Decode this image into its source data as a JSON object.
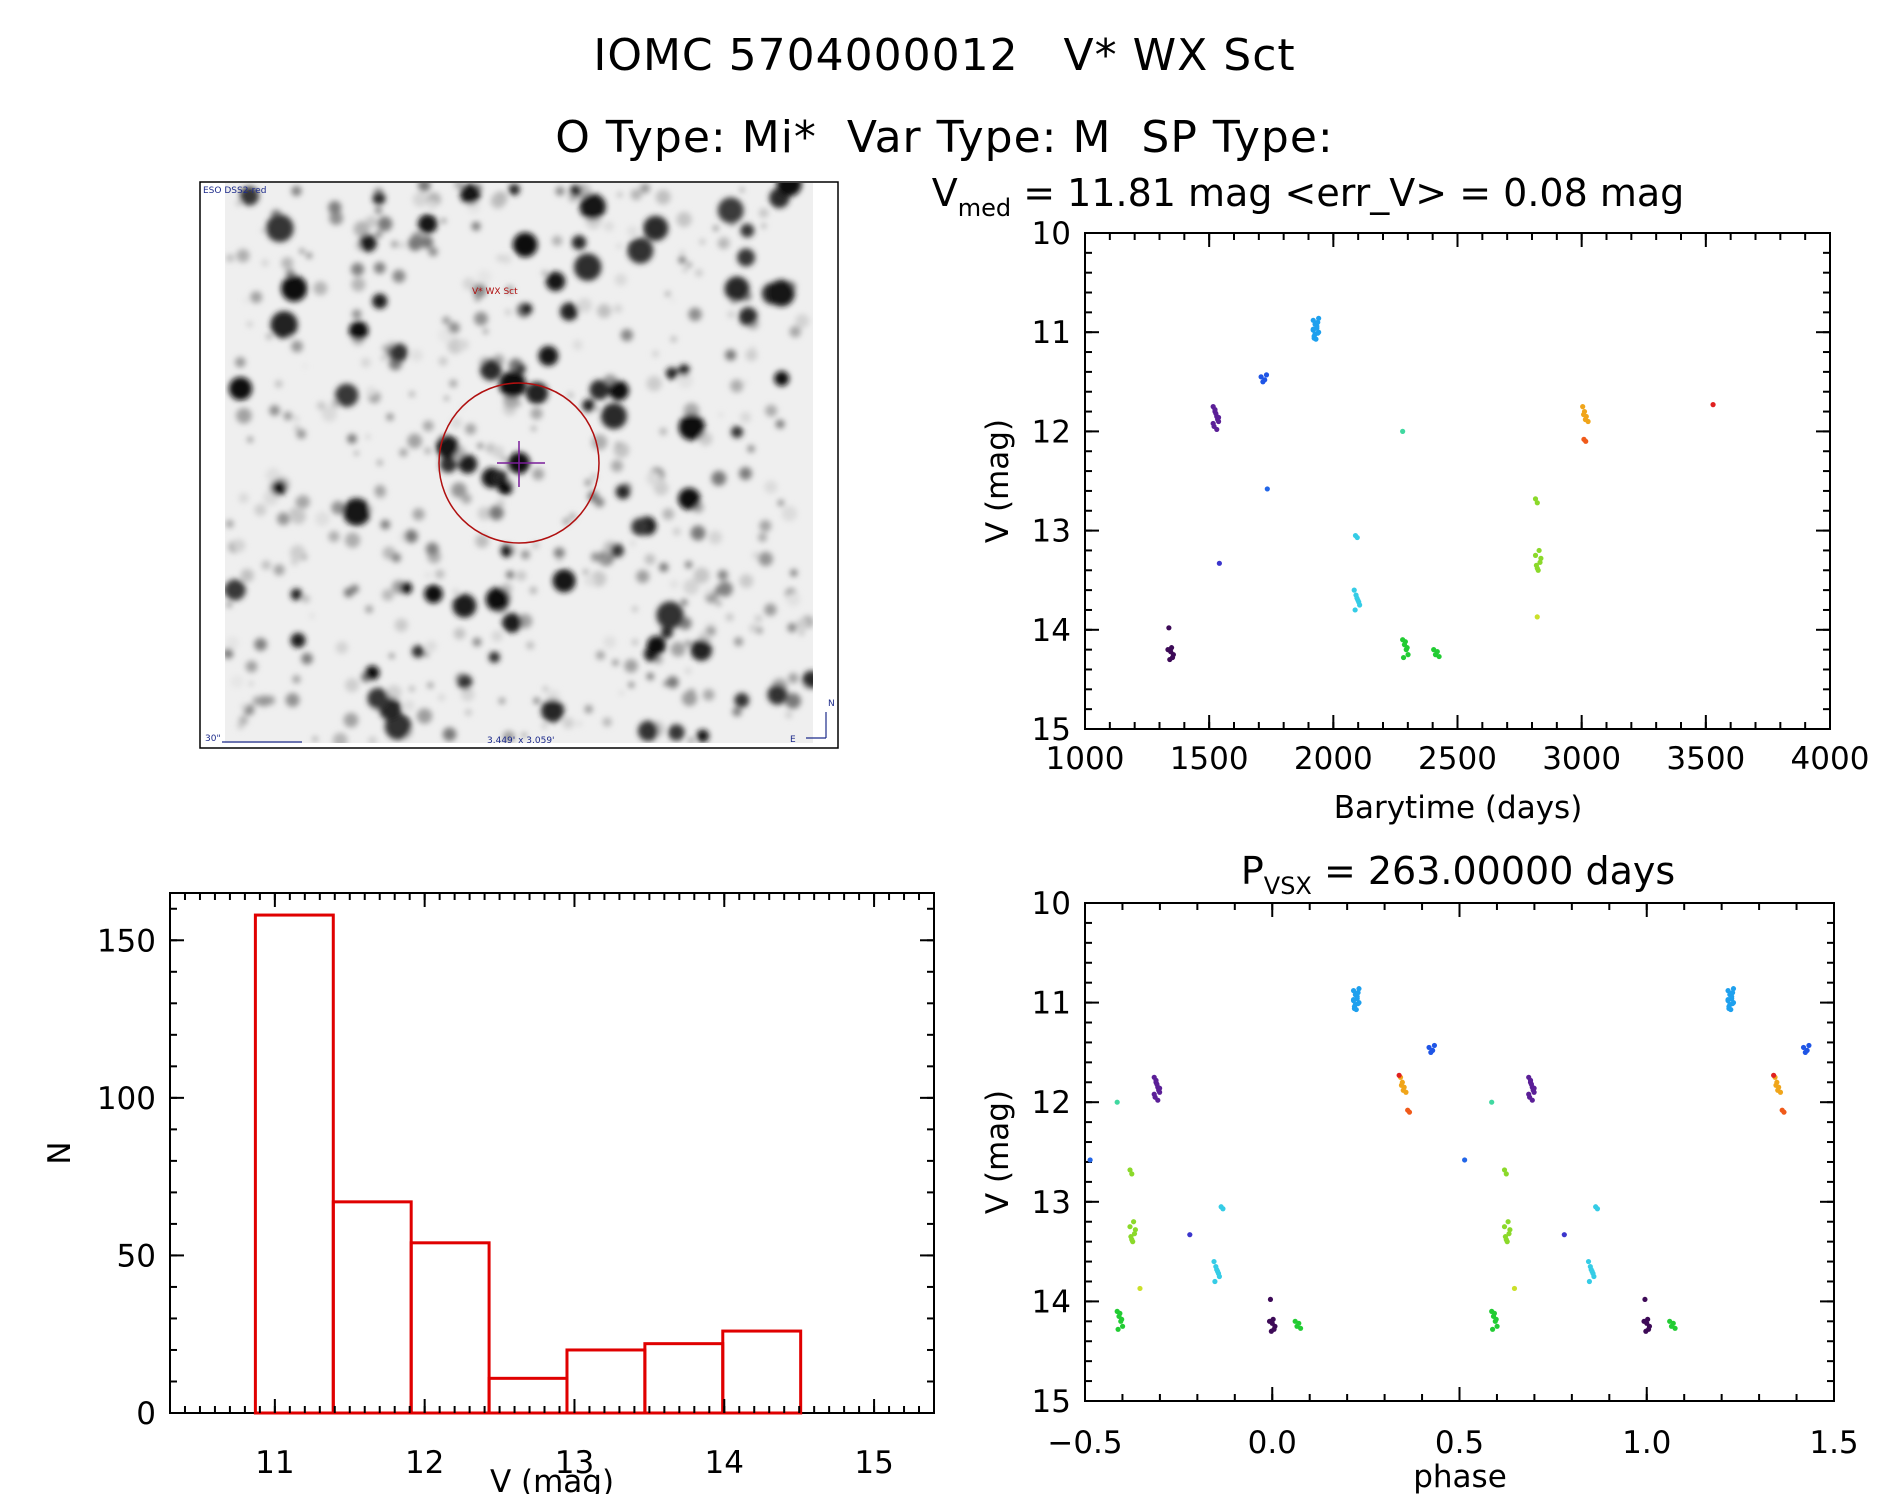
{
  "header": {
    "line1": "IOMC 5704000012   V* WX Sct",
    "line2": "O Type: Mi*  Var Type: M  SP Type:"
  },
  "finder": {
    "survey_label": "ESO DSS2-red",
    "target_label": "V* WX Sct",
    "scale_label": "30\"",
    "fov_label": "3.449' x 3.059'",
    "north_label": "N",
    "east_label": "E"
  },
  "chart_data": [
    {
      "type": "scatter",
      "name": "light-curve",
      "title_main": "V",
      "title_sub": "med",
      "title_rest": " = 11.81 mag <err_V> = 0.08 mag",
      "xlabel": "Barytime (days)",
      "ylabel": "V (mag)",
      "xlim": [
        1000,
        4000
      ],
      "ylim": [
        15,
        10
      ],
      "x_ticks": [
        1000,
        1500,
        2000,
        2500,
        3000,
        3500,
        4000
      ],
      "y_ticks": [
        10,
        11,
        12,
        13,
        14,
        15
      ],
      "groups": [
        {
          "x": 1345,
          "color": "#3d0a57",
          "points": [
            14.2,
            14.3,
            14.18,
            14.25,
            13.98,
            14.22,
            14.28
          ]
        },
        {
          "x": 1527,
          "color": "#5b1f97",
          "points": [
            11.75,
            11.8,
            11.85,
            11.9,
            11.95,
            11.82,
            11.88,
            11.92,
            11.78,
            11.98,
            11.86
          ]
        },
        {
          "x": 1552,
          "color": "#3b35cc",
          "points": [
            13.33
          ]
        },
        {
          "x": 1720,
          "color": "#1f55e6",
          "points": [
            11.45,
            11.5,
            11.48,
            11.43
          ]
        },
        {
          "x": 1745,
          "color": "#2266e8",
          "points": [
            12.58
          ]
        },
        {
          "x": 1930,
          "color": "#1ea0ee",
          "points": [
            10.88,
            10.92,
            10.96,
            11.0,
            11.04,
            11.07,
            10.9,
            10.98,
            11.02,
            10.94,
            10.86,
            11.06,
            10.91,
            11.01,
            10.97
          ]
        },
        {
          "x": 2100,
          "color": "#35cce6",
          "points": [
            13.05,
            13.07
          ]
        },
        {
          "x": 2095,
          "color": "#35cce6",
          "points": [
            13.6,
            13.65,
            13.7,
            13.75,
            13.8,
            13.68,
            13.72
          ]
        },
        {
          "x": 2290,
          "color": "#40d8a0",
          "points": [
            12.0
          ]
        },
        {
          "x": 2290,
          "color": "#22cc33",
          "points": [
            14.1,
            14.15,
            14.2,
            14.25,
            14.28,
            14.12,
            14.18
          ]
        },
        {
          "x": 2415,
          "color": "#22cc33",
          "points": [
            14.2,
            14.25,
            14.22,
            14.27
          ]
        },
        {
          "x": 2825,
          "color": "#8bd92a",
          "points": [
            12.68,
            12.72,
            13.2,
            13.28,
            13.35,
            13.4,
            13.32,
            13.25,
            13.38
          ]
        },
        {
          "x": 2832,
          "color": "#cbe02a",
          "points": [
            13.87
          ]
        },
        {
          "x": 3015,
          "color": "#f0a51a",
          "points": [
            11.75,
            11.8,
            11.85,
            11.9,
            11.83,
            11.88
          ]
        },
        {
          "x": 3020,
          "color": "#f05a1a",
          "points": [
            12.08,
            12.1
          ]
        },
        {
          "x": 3540,
          "color": "#e02020",
          "points": [
            11.73
          ]
        }
      ]
    },
    {
      "type": "bar",
      "name": "histogram",
      "xlabel": "V (mag)",
      "ylabel": "N",
      "xlim": [
        10.3,
        15.4
      ],
      "ylim": [
        0,
        165
      ],
      "x_ticks": [
        11,
        12,
        13,
        14,
        15
      ],
      "y_ticks": [
        0,
        50,
        100,
        150
      ],
      "bins": [
        {
          "x0": 10.87,
          "x1": 11.39,
          "count": 158
        },
        {
          "x0": 11.39,
          "x1": 11.91,
          "count": 67
        },
        {
          "x0": 11.91,
          "x1": 12.43,
          "count": 54
        },
        {
          "x0": 12.43,
          "x1": 12.95,
          "count": 11
        },
        {
          "x0": 12.95,
          "x1": 13.47,
          "count": 20
        },
        {
          "x0": 13.47,
          "x1": 13.99,
          "count": 22
        },
        {
          "x0": 13.99,
          "x1": 14.51,
          "count": 26
        }
      ],
      "color": "#e00000"
    },
    {
      "type": "scatter",
      "name": "phased-curve",
      "title_main": "P",
      "title_sub": "VSX",
      "title_rest": " = 263.00000 days",
      "xlabel": "phase",
      "ylabel": "V (mag)",
      "xlim": [
        -0.5,
        1.5
      ],
      "ylim": [
        15,
        10
      ],
      "x_ticks": [
        -0.5,
        0.0,
        0.5,
        1.0,
        1.5
      ],
      "x_tick_labels": [
        "−0.5",
        "0.0",
        "0.5",
        "1.0",
        "1.5"
      ],
      "y_ticks": [
        10,
        11,
        12,
        13,
        14,
        15
      ],
      "period": 263.0,
      "epoch": 1345,
      "groups_ref": "light-curve"
    }
  ]
}
